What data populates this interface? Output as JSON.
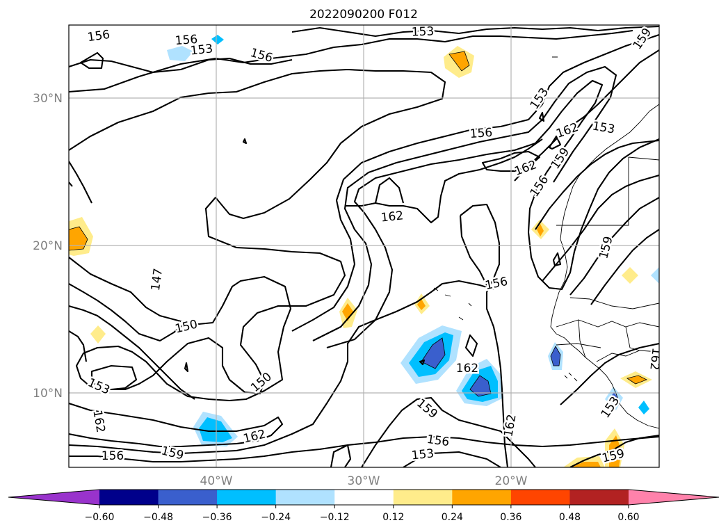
{
  "title": "2022090200 F012",
  "map": {
    "lat_labels": [
      {
        "label": "30°N",
        "lat": 30
      },
      {
        "label": "20°N",
        "lat": 20
      },
      {
        "label": "10°N",
        "lat": 10
      }
    ],
    "lon_labels": [
      {
        "label": "40°W",
        "lon": -40
      },
      {
        "label": "30°W",
        "lon": -30
      },
      {
        "label": "20°W",
        "lon": -20
      }
    ],
    "contour_labels": [
      {
        "text": "156"
      },
      {
        "text": "156"
      },
      {
        "text": "153"
      },
      {
        "text": "156"
      },
      {
        "text": "153"
      },
      {
        "text": "159"
      },
      {
        "text": "153"
      },
      {
        "text": "156"
      },
      {
        "text": "162"
      },
      {
        "text": "153"
      },
      {
        "text": "162"
      },
      {
        "text": "159"
      },
      {
        "text": "156"
      },
      {
        "text": "162"
      },
      {
        "text": "159"
      },
      {
        "text": "147"
      },
      {
        "text": "156"
      },
      {
        "text": "150"
      },
      {
        "text": "162"
      },
      {
        "text": "153"
      },
      {
        "text": "150"
      },
      {
        "text": "159"
      },
      {
        "text": "162"
      },
      {
        "text": "162"
      },
      {
        "text": "156"
      },
      {
        "text": "159"
      },
      {
        "text": "156"
      },
      {
        "text": "153"
      },
      {
        "text": "162"
      },
      {
        "text": "159"
      },
      {
        "text": "153"
      },
      {
        "text": "162"
      }
    ]
  },
  "colorbar": {
    "tick_labels": [
      "−0.60",
      "−0.48",
      "−0.36",
      "−0.24",
      "−0.12",
      "0.12",
      "0.24",
      "0.36",
      "0.48",
      "0.60"
    ],
    "colors": [
      "#9933cc",
      "#00008b",
      "#3a5fcd",
      "#00bfff",
      "#b0e2ff",
      "#ffffff",
      "#ffec8b",
      "#ffa500",
      "#ff4500",
      "#b22222",
      "#ff82ab"
    ]
  }
}
